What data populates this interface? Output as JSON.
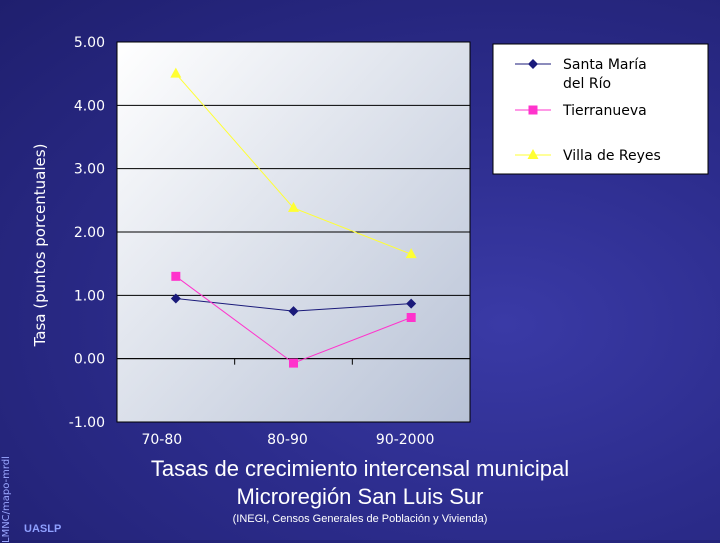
{
  "chart_data": {
    "type": "line",
    "title": "Tasas de crecimiento intercensal municipal",
    "subtitle": "Microregión San Luis Sur",
    "source": "(INEGI, Censos Generales de Población y Vivienda)",
    "ylabel": "Tasa (puntos porcentuales)",
    "xlabel": "",
    "categories": [
      "70-80",
      "80-90",
      "90-2000"
    ],
    "y_ticks": [
      "5.00",
      "4.00",
      "3.00",
      "2.00",
      "1.00",
      "0.00",
      "-1.00"
    ],
    "ylim": [
      -1,
      5
    ],
    "grid": true,
    "legend_position": "top-right",
    "series": [
      {
        "name": "Santa María del Río",
        "name_lines": [
          "Santa María",
          "del Río"
        ],
        "values": [
          0.95,
          0.75,
          0.87
        ],
        "color": "#1a1a7a",
        "marker": "diamond"
      },
      {
        "name": "Tierranueva",
        "name_lines": [
          "Tierranueva"
        ],
        "values": [
          1.3,
          -0.07,
          0.65
        ],
        "color": "#ff33cc",
        "marker": "square"
      },
      {
        "name": "Villa de Reyes",
        "name_lines": [
          "Villa de Reyes"
        ],
        "values": [
          4.5,
          2.38,
          1.65
        ],
        "color": "#ffff33",
        "marker": "triangle"
      }
    ]
  },
  "footer": {
    "side_note": "LMNC/mapo-mrdl",
    "org": "UASLP"
  }
}
